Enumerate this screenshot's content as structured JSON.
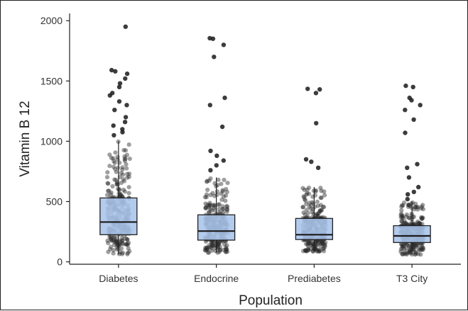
{
  "chart_data": {
    "type": "box",
    "xlabel": "Population",
    "ylabel": "Vitamin B 12",
    "categories": [
      "Diabetes",
      "Endocrine",
      "Prediabetes",
      "T3 City"
    ],
    "ylim": [
      -20,
      2060
    ],
    "yticks": [
      0,
      500,
      1000,
      1500,
      2000
    ],
    "grid": false,
    "colors": {
      "box_fill": "#a8c4ea",
      "box_stroke": "#222222",
      "point": "#2b2b2b"
    },
    "boxes": [
      {
        "category": "Diabetes",
        "min": 60,
        "q1": 225,
        "median": 330,
        "q3": 530,
        "max": 1000
      },
      {
        "category": "Endocrine",
        "min": 75,
        "q1": 180,
        "median": 255,
        "q3": 390,
        "max": 700
      },
      {
        "category": "Prediabetes",
        "min": 85,
        "q1": 185,
        "median": 225,
        "q3": 360,
        "max": 620
      },
      {
        "category": "T3 City",
        "min": 60,
        "q1": 160,
        "median": 215,
        "q3": 300,
        "max": 500
      }
    ],
    "outliers": [
      {
        "category": "Diabetes",
        "values": [
          1050,
          1075,
          1100,
          1130,
          1160,
          1200,
          1260,
          1300,
          1330,
          1380,
          1400,
          1450,
          1480,
          1520,
          1560,
          1580,
          1590,
          1950
        ]
      },
      {
        "category": "Endocrine",
        "values": [
          760,
          800,
          840,
          880,
          920,
          1120,
          1300,
          1360,
          1700,
          1800,
          1850,
          1855
        ]
      },
      {
        "category": "Prediabetes",
        "values": [
          780,
          830,
          850,
          1150,
          1400,
          1430,
          1435
        ]
      },
      {
        "category": "T3 City",
        "values": [
          520,
          560,
          580,
          620,
          700,
          780,
          810,
          1070,
          1180,
          1260,
          1300,
          1340,
          1360,
          1450,
          1460
        ]
      }
    ]
  }
}
